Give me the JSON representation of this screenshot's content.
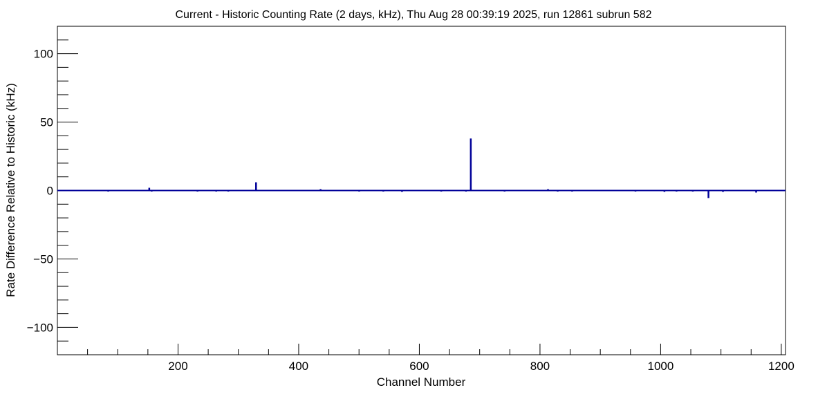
{
  "chart_data": {
    "type": "bar",
    "title": "Current - Historic Counting Rate (2 days, kHz), Thu Aug 28 00:39:19 2025, run 12861 subrun 582",
    "xlabel": "Channel Number",
    "ylabel": "Rate Difference Relative to Historic (kHz)",
    "xlim": [
      0,
      1207
    ],
    "ylim": [
      -120,
      120
    ],
    "x_ticks": [
      200,
      400,
      600,
      800,
      1000,
      1200
    ],
    "y_ticks": [
      -100,
      -50,
      0,
      50,
      100
    ],
    "y_tick_labels": [
      "−100",
      "−50",
      "0",
      "50",
      "100"
    ],
    "grid": false,
    "line_color": "#000099",
    "baseline_value": 0,
    "nonzero_channels": [
      {
        "channel": 84,
        "value": -0.5
      },
      {
        "channel": 152,
        "value": 2
      },
      {
        "channel": 156,
        "value": -0.5
      },
      {
        "channel": 232,
        "value": -0.5
      },
      {
        "channel": 263,
        "value": -0.5
      },
      {
        "channel": 283,
        "value": -0.5
      },
      {
        "channel": 329,
        "value": 6
      },
      {
        "channel": 436,
        "value": 1
      },
      {
        "channel": 500,
        "value": -0.5
      },
      {
        "channel": 540,
        "value": -0.5
      },
      {
        "channel": 571,
        "value": -1
      },
      {
        "channel": 636,
        "value": -0.5
      },
      {
        "channel": 677,
        "value": -0.5
      },
      {
        "channel": 685,
        "value": 38
      },
      {
        "channel": 741,
        "value": -0.5
      },
      {
        "channel": 813,
        "value": 1
      },
      {
        "channel": 829,
        "value": -0.5
      },
      {
        "channel": 853,
        "value": -0.5
      },
      {
        "channel": 958,
        "value": -0.5
      },
      {
        "channel": 1006,
        "value": -1
      },
      {
        "channel": 1026,
        "value": -0.5
      },
      {
        "channel": 1053,
        "value": -0.5
      },
      {
        "channel": 1079,
        "value": -5.5
      },
      {
        "channel": 1103,
        "value": -1
      },
      {
        "channel": 1158,
        "value": -1.5
      }
    ]
  }
}
